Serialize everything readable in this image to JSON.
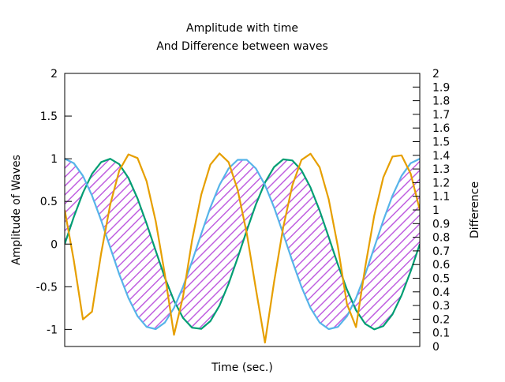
{
  "chart_data": {
    "type": "line",
    "title": "Amplitude with time",
    "subtitle": "And Difference between waves",
    "xlabel": "Time (sec.)",
    "ylabel": "Amplitude of Waves",
    "y2label": "Difference",
    "xlim": [
      0,
      12.566
    ],
    "ylim": [
      -1.2,
      2
    ],
    "y2lim": [
      0,
      2
    ],
    "yticks": [
      "2",
      "1.5",
      "1",
      "0.5",
      "0",
      "-0.5",
      "-1"
    ],
    "y2ticks": [
      "2",
      "1.9",
      "1.8",
      "1.7",
      "1.6",
      "1.5",
      "1.4",
      "1.3",
      "1.2",
      "1.1",
      "1",
      "0.9",
      "0.8",
      "0.7",
      "0.6",
      "0.5",
      "0.4",
      "0.3",
      "0.2",
      "0.1",
      "0"
    ],
    "samples": 40,
    "series": [
      {
        "expr": "sin(t)",
        "axis": "y",
        "color": "#009e73"
      },
      {
        "expr": "cos(t)",
        "axis": "y",
        "color": "#56b4e9"
      },
      {
        "expr": "|sin(t) - cos(t)|",
        "axis": "y2",
        "color": "#e69f00"
      }
    ],
    "fill_between": {
      "series": [
        "sin(t)",
        "cos(t)"
      ],
      "color": "#c060e0",
      "pattern": "hatch"
    },
    "grid": false,
    "legend": "none"
  }
}
